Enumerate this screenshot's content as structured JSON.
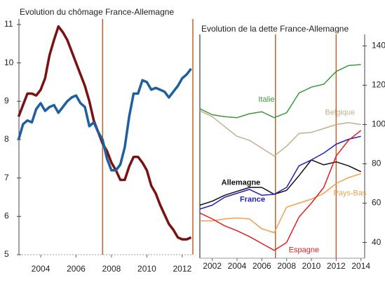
{
  "chart_data": [
    {
      "type": "line",
      "title": "Evolution du chômage France-Allemagne",
      "x": [
        2002.75,
        2003,
        2003.25,
        2003.5,
        2003.75,
        2004,
        2004.25,
        2004.5,
        2004.75,
        2005,
        2005.25,
        2005.5,
        2005.75,
        2006,
        2006.25,
        2006.5,
        2006.75,
        2007,
        2007.25,
        2007.5,
        2007.75,
        2008,
        2008.25,
        2008.5,
        2008.75,
        2009,
        2009.25,
        2009.5,
        2009.75,
        2010,
        2010.25,
        2010.5,
        2010.75,
        2011,
        2011.25,
        2011.5,
        2011.75,
        2012,
        2012.25,
        2012.5
      ],
      "series": [
        {
          "color": "#7b1212",
          "values": [
            8.6,
            8.9,
            9.2,
            9.2,
            9.15,
            9.3,
            9.6,
            10.2,
            10.6,
            10.95,
            10.8,
            10.6,
            10.3,
            10.0,
            9.7,
            9.4,
            9.0,
            8.5,
            8.2,
            7.9,
            7.7,
            7.4,
            7.2,
            6.95,
            6.95,
            7.3,
            7.55,
            7.55,
            7.4,
            7.2,
            6.8,
            6.6,
            6.3,
            6.05,
            5.8,
            5.65,
            5.45,
            5.4,
            5.4,
            5.45
          ]
        },
        {
          "color": "#1f5fa0",
          "values": [
            8.0,
            8.4,
            8.5,
            8.45,
            8.8,
            8.95,
            8.75,
            8.85,
            8.9,
            8.7,
            8.85,
            9.0,
            9.1,
            9.15,
            8.95,
            8.85,
            8.35,
            8.45,
            8.2,
            8.0,
            7.5,
            7.2,
            7.2,
            7.35,
            7.8,
            8.6,
            9.2,
            9.2,
            9.55,
            9.5,
            9.3,
            9.35,
            9.3,
            9.25,
            9.1,
            9.25,
            9.4,
            9.6,
            9.7,
            9.85
          ]
        }
      ],
      "xlim": [
        2002.77,
        2012.6
      ],
      "xticks": [
        2004,
        2006,
        2008,
        2010,
        2012
      ],
      "ylim": [
        5,
        11
      ],
      "yticks": [
        5,
        6,
        7,
        8,
        9,
        10,
        11
      ],
      "vlines": [
        2007.5,
        2012.6
      ],
      "vline_color": "#c0602a"
    },
    {
      "type": "line",
      "title": "Evolution de la dette France-Allemagne",
      "x": [
        2001,
        2002,
        2003,
        2004,
        2005,
        2006,
        2007,
        2008,
        2009,
        2010,
        2011,
        2012,
        2013,
        2014
      ],
      "series": [
        {
          "name": "Italie",
          "color": "#3a9a3a",
          "values": [
            108,
            105,
            104,
            103.5,
            105.5,
            106.5,
            103.5,
            106,
            116,
            119,
            120.5,
            127,
            130,
            130.5
          ]
        },
        {
          "name": "Belgique",
          "color": "#c2b08a",
          "values": [
            107,
            104,
            99,
            94,
            92,
            88,
            84,
            89,
            95.5,
            96,
            98,
            100,
            101,
            100
          ]
        },
        {
          "name": "Allemagne",
          "color": "#111111",
          "values": [
            59,
            61,
            64,
            66,
            68,
            68,
            64.5,
            66.5,
            74,
            82,
            79.5,
            81,
            79,
            76
          ]
        },
        {
          "name": "France",
          "color": "#2020c0",
          "values": [
            57,
            59,
            63,
            65,
            67,
            64,
            64.5,
            68,
            79,
            82,
            85.5,
            90,
            92.5,
            94
          ]
        },
        {
          "name": "Pays-Bas",
          "color": "#f0a050",
          "values": [
            51,
            51,
            52,
            52.5,
            52,
            47,
            45,
            58,
            60,
            62,
            65,
            70,
            73,
            75
          ]
        },
        {
          "name": "Espagne",
          "color": "#e02020",
          "values": [
            55,
            52,
            48.5,
            46,
            43,
            39.5,
            36,
            40,
            53,
            60,
            68,
            84,
            92,
            97
          ]
        }
      ],
      "xlim": [
        2001,
        2014.3
      ],
      "xticks": [
        2002,
        2004,
        2006,
        2008,
        2010,
        2012,
        2014
      ],
      "ylim": [
        32,
        143
      ],
      "yticks": [
        40,
        60,
        80,
        100,
        120,
        140
      ],
      "vlines": [
        2007.1,
        2012
      ],
      "vline_color": "#c0602a"
    }
  ]
}
